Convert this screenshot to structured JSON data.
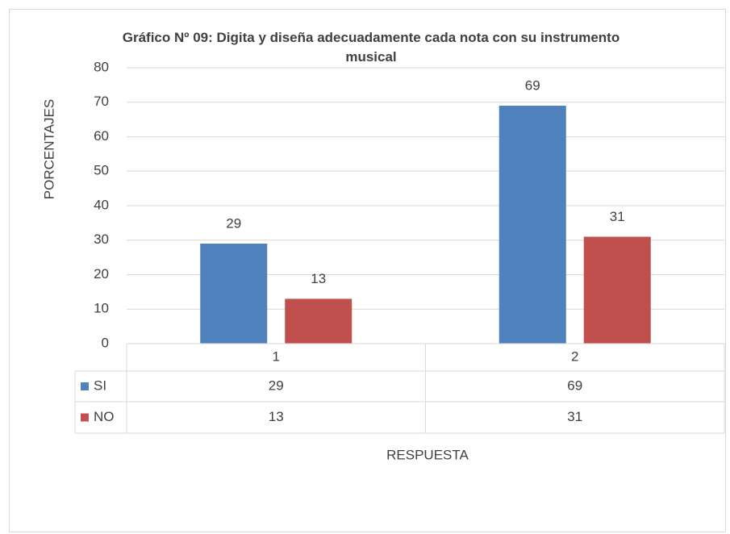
{
  "chart_data": {
    "type": "bar",
    "title": "Gráfico Nº 09: Digita y diseña  adecuadamente cada nota con su instrumento musical",
    "y_label": "PORCENTAJES",
    "x_label": "RESPUESTA",
    "categories": [
      "1",
      "2"
    ],
    "series": [
      {
        "name": "SI",
        "color": "#4f81bd",
        "values": [
          29,
          69
        ]
      },
      {
        "name": "NO",
        "color": "#c0504d",
        "values": [
          13,
          31
        ]
      }
    ],
    "ylim": [
      0,
      80
    ],
    "yticks": [
      0,
      10,
      20,
      30,
      40,
      50,
      60,
      70,
      80
    ],
    "grid": true,
    "data_table": true
  }
}
